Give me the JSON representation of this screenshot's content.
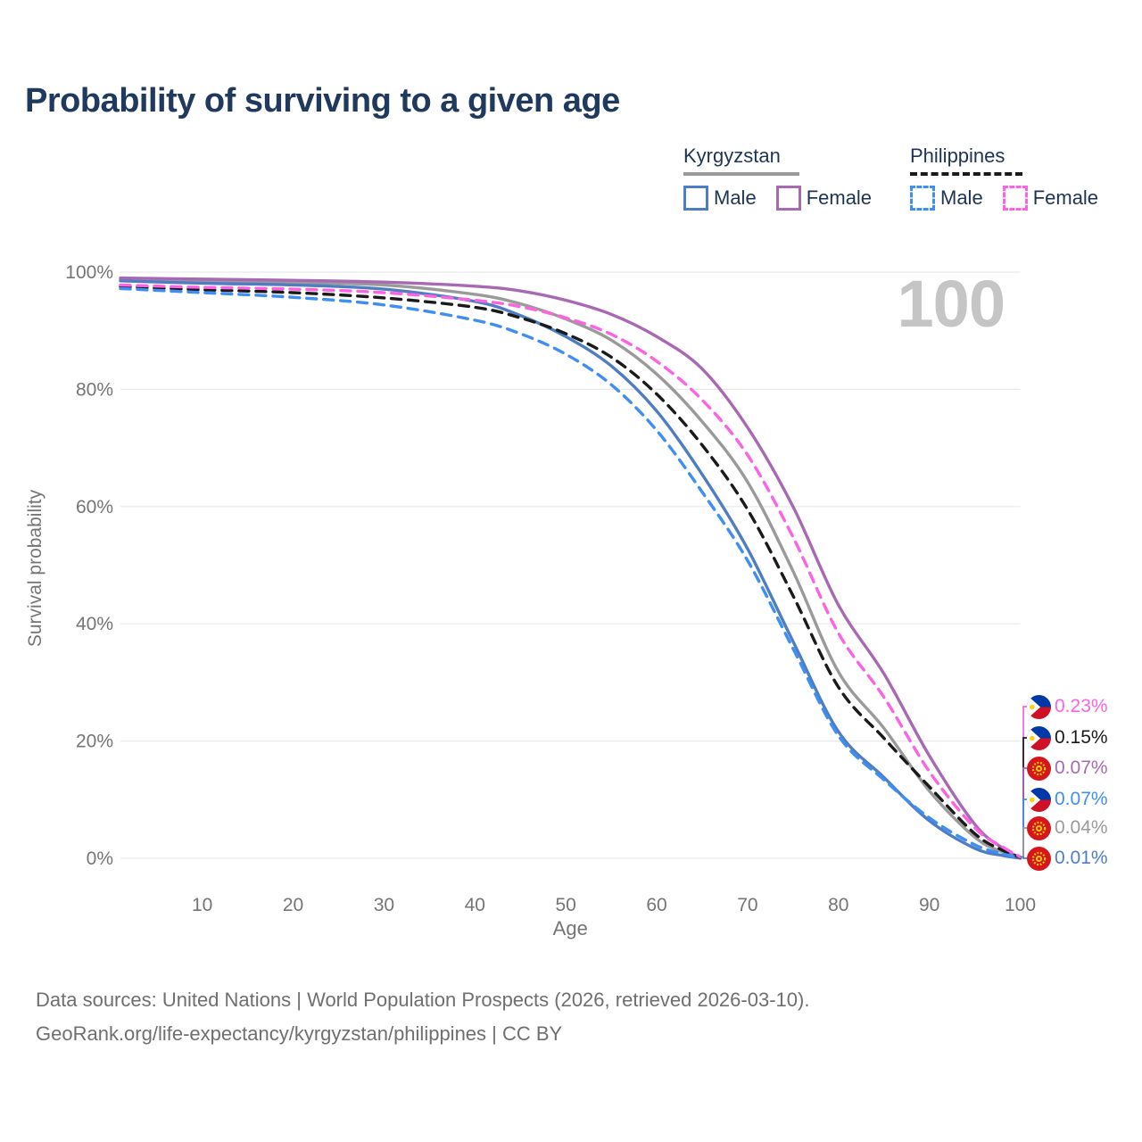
{
  "title": "Probability of surviving to a given age",
  "watermark": "100",
  "legend": {
    "groups": [
      {
        "name": "Kyrgyzstan",
        "line_style": "solid",
        "line_color": "#9a9a9a",
        "items": [
          {
            "label": "Male",
            "color": "#4f7dc3",
            "style": "solid"
          },
          {
            "label": "Female",
            "color": "#a869b3",
            "style": "solid"
          }
        ]
      },
      {
        "name": "Philippines",
        "line_style": "dashed",
        "line_color": "#1a1a1a",
        "items": [
          {
            "label": "Male",
            "color": "#3f8ef2",
            "style": "dashed"
          },
          {
            "label": "Female",
            "color": "#fb63e2",
            "style": "dashed"
          }
        ]
      }
    ]
  },
  "chart_data": {
    "type": "line",
    "title": "Probability of surviving to a given age",
    "xlabel": "Age",
    "ylabel": "Survival probability",
    "xlim": [
      1,
      100
    ],
    "ylim": [
      0,
      1
    ],
    "grid": "horizontal",
    "x_ticks": [
      10,
      20,
      30,
      40,
      50,
      60,
      70,
      80,
      90,
      100
    ],
    "y_tick_values": [
      0,
      0.2,
      0.4,
      0.6,
      0.8,
      1.0
    ],
    "y_tick_labels": [
      "0%",
      "20%",
      "40%",
      "60%",
      "80%",
      "100%"
    ],
    "x": [
      1,
      10,
      20,
      30,
      40,
      45,
      50,
      55,
      60,
      65,
      70,
      75,
      80,
      85,
      90,
      95,
      98,
      100
    ],
    "series": [
      {
        "name": "Kyrgyzstan",
        "country": "Kyrgyzstan",
        "sex": "Both",
        "color": "#9a9a9a",
        "style": "solid",
        "values": [
          0.988,
          0.985,
          0.982,
          0.978,
          0.962,
          0.946,
          0.92,
          0.884,
          0.826,
          0.745,
          0.642,
          0.49,
          0.318,
          0.222,
          0.115,
          0.036,
          0.011,
          0.0004
        ]
      },
      {
        "name": "Kyrgyzstan Male",
        "country": "Kyrgyzstan",
        "sex": "Male",
        "color": "#4f7dc3",
        "style": "solid",
        "values": [
          0.985,
          0.981,
          0.978,
          0.971,
          0.95,
          0.926,
          0.89,
          0.84,
          0.763,
          0.655,
          0.528,
          0.37,
          0.216,
          0.138,
          0.064,
          0.017,
          0.005,
          0.0001
        ]
      },
      {
        "name": "Kyrgyzstan Female",
        "country": "Kyrgyzstan",
        "sex": "Female",
        "color": "#a869b3",
        "style": "solid",
        "values": [
          0.99,
          0.988,
          0.986,
          0.983,
          0.976,
          0.968,
          0.952,
          0.928,
          0.89,
          0.835,
          0.735,
          0.6,
          0.432,
          0.315,
          0.175,
          0.058,
          0.018,
          0.0007
        ]
      },
      {
        "name": "Philippines",
        "country": "Philippines",
        "sex": "Both",
        "color": "#1a1a1a",
        "style": "dashed",
        "values": [
          0.9755,
          0.97,
          0.965,
          0.956,
          0.94,
          0.922,
          0.895,
          0.855,
          0.792,
          0.705,
          0.595,
          0.448,
          0.292,
          0.205,
          0.122,
          0.042,
          0.014,
          0.0015
        ]
      },
      {
        "name": "Philippines Male",
        "country": "Philippines",
        "sex": "Male",
        "color": "#3f8ef2",
        "style": "dashed",
        "values": [
          0.972,
          0.965,
          0.957,
          0.944,
          0.918,
          0.895,
          0.86,
          0.808,
          0.73,
          0.625,
          0.508,
          0.358,
          0.209,
          0.134,
          0.069,
          0.023,
          0.008,
          0.0007
        ]
      },
      {
        "name": "Philippines Female",
        "country": "Philippines",
        "sex": "Female",
        "color": "#fb63e2",
        "style": "dashed",
        "values": [
          0.978,
          0.974,
          0.971,
          0.965,
          0.952,
          0.941,
          0.922,
          0.894,
          0.848,
          0.782,
          0.688,
          0.548,
          0.384,
          0.275,
          0.148,
          0.052,
          0.02,
          0.0023
        ]
      }
    ],
    "end_labels": [
      {
        "text": "0.23%",
        "series": "Philippines Female",
        "flag": "philippines",
        "color": "#fb63e2"
      },
      {
        "text": "0.15%",
        "series": "Philippines",
        "flag": "philippines",
        "color": "#1a1a1a"
      },
      {
        "text": "0.07%",
        "series": "Kyrgyzstan Female",
        "flag": "kyrgyzstan",
        "color": "#a869b3"
      },
      {
        "text": "0.07%",
        "series": "Philippines Male",
        "flag": "philippines",
        "color": "#3f8ef2"
      },
      {
        "text": "0.04%",
        "series": "Kyrgyzstan",
        "flag": "kyrgyzstan",
        "color": "#9a9a9a"
      },
      {
        "text": "0.01%",
        "series": "Kyrgyzstan Male",
        "flag": "kyrgyzstan",
        "color": "#4f7dc3"
      }
    ],
    "legend_position": "top-right"
  },
  "footer": {
    "line1": "Data sources: United Nations | World Population Prospects (2026, retrieved 2026-03-10).",
    "line2": "GeoRank.org/life-expectancy/kyrgyzstan/philippines | CC BY"
  }
}
